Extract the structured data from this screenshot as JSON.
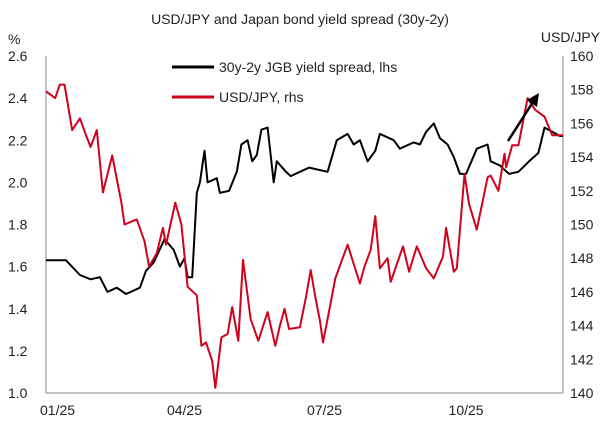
{
  "chart_data": {
    "type": "line",
    "title": "USD/JPY and Japan bond yield spread (30y-2y)",
    "ylabel_left": "%",
    "ylabel_right": "USD/JPY",
    "x_unit": "days since 2025-01-01",
    "x_ticks": [
      {
        "day": 0,
        "label": "01/25"
      },
      {
        "day": 90,
        "label": "04/25"
      },
      {
        "day": 181,
        "label": "07/25"
      },
      {
        "day": 273,
        "label": "10/25"
      }
    ],
    "xlim": [
      0,
      336
    ],
    "ylim_left": [
      1.0,
      2.6
    ],
    "ylim_right": [
      140,
      160
    ],
    "yticks_left": [
      "1.0",
      "1.2",
      "1.4",
      "1.6",
      "1.8",
      "2.0",
      "2.2",
      "2.4",
      "2.6"
    ],
    "yticks_right": [
      "140",
      "142",
      "144",
      "146",
      "148",
      "150",
      "152",
      "154",
      "156",
      "158",
      "160"
    ],
    "legend_position": "top-center",
    "series": [
      {
        "name": "30y-2y JGB yield spread, lhs",
        "axis": "left",
        "color": "#000000",
        "x": [
          0,
          13,
          22,
          29,
          35,
          40,
          46,
          52,
          61,
          65,
          70,
          77,
          83,
          87,
          90,
          92,
          95,
          98,
          100,
          103,
          105,
          111,
          113,
          119,
          124,
          127,
          131,
          134,
          137,
          140,
          144,
          148,
          150,
          156,
          159,
          165,
          171,
          183,
          189,
          196,
          200,
          204,
          209,
          214,
          217,
          226,
          230,
          239,
          243,
          247,
          252,
          256,
          261,
          265,
          269,
          273,
          280,
          287,
          289,
          295,
          301,
          307,
          314,
          320,
          324,
          329,
          334,
          336
        ],
        "y": [
          1.63,
          1.63,
          1.56,
          1.54,
          1.55,
          1.48,
          1.5,
          1.47,
          1.5,
          1.58,
          1.62,
          1.73,
          1.68,
          1.6,
          1.64,
          1.55,
          1.55,
          1.95,
          2.0,
          2.15,
          2.0,
          2.02,
          1.95,
          1.96,
          2.05,
          2.18,
          2.2,
          2.1,
          2.13,
          2.25,
          2.26,
          2.0,
          2.1,
          2.05,
          2.03,
          2.05,
          2.07,
          2.05,
          2.2,
          2.23,
          2.18,
          2.2,
          2.1,
          2.15,
          2.23,
          2.2,
          2.16,
          2.19,
          2.18,
          2.24,
          2.28,
          2.21,
          2.18,
          2.12,
          2.04,
          2.04,
          2.16,
          2.18,
          2.1,
          2.08,
          2.04,
          2.05,
          2.1,
          2.14,
          2.26,
          2.24,
          2.22,
          2.22
        ]
      },
      {
        "name": "USD/JPY, rhs",
        "axis": "right",
        "color": "#d0021b",
        "x": [
          0,
          6,
          9,
          12,
          17,
          22,
          26,
          29,
          33,
          37,
          43,
          49,
          51,
          59,
          64,
          67,
          72,
          76,
          78,
          84,
          88,
          92,
          98,
          101,
          104,
          108,
          110,
          114,
          118,
          121,
          125,
          128,
          133,
          138,
          144,
          149,
          152,
          155,
          158,
          165,
          169,
          172,
          175,
          178,
          180,
          183,
          188,
          196,
          204,
          207,
          211,
          214,
          217,
          222,
          224,
          232,
          236,
          241,
          247,
          252,
          258,
          260,
          265,
          267,
          272,
          275,
          280,
          287,
          289,
          294,
          298,
          299,
          303,
          307,
          313,
          318,
          324,
          329,
          334,
          336
        ],
        "y": [
          157.9,
          157.5,
          158.3,
          158.3,
          155.6,
          156.3,
          155.3,
          154.6,
          155.6,
          151.9,
          154.1,
          151.3,
          150.0,
          150.3,
          149.0,
          147.5,
          148.3,
          149.8,
          148.8,
          151.3,
          150.0,
          146.3,
          145.8,
          142.8,
          143.0,
          141.9,
          140.3,
          143.3,
          143.5,
          145.1,
          143.1,
          147.9,
          144.4,
          143.1,
          144.8,
          142.8,
          144.0,
          145.0,
          143.8,
          143.9,
          145.7,
          147.3,
          145.7,
          144.3,
          143.0,
          144.4,
          146.8,
          148.8,
          146.5,
          147.5,
          148.5,
          150.5,
          147.4,
          148.0,
          146.6,
          148.7,
          147.2,
          148.7,
          147.4,
          146.8,
          148.1,
          149.8,
          147.2,
          147.4,
          153.0,
          151.2,
          149.7,
          152.8,
          152.9,
          152.0,
          154.2,
          153.4,
          154.7,
          154.7,
          157.5,
          156.8,
          156.4,
          155.3,
          155.3,
          155.3
        ]
      }
    ],
    "annotation": "upward-arrow"
  }
}
